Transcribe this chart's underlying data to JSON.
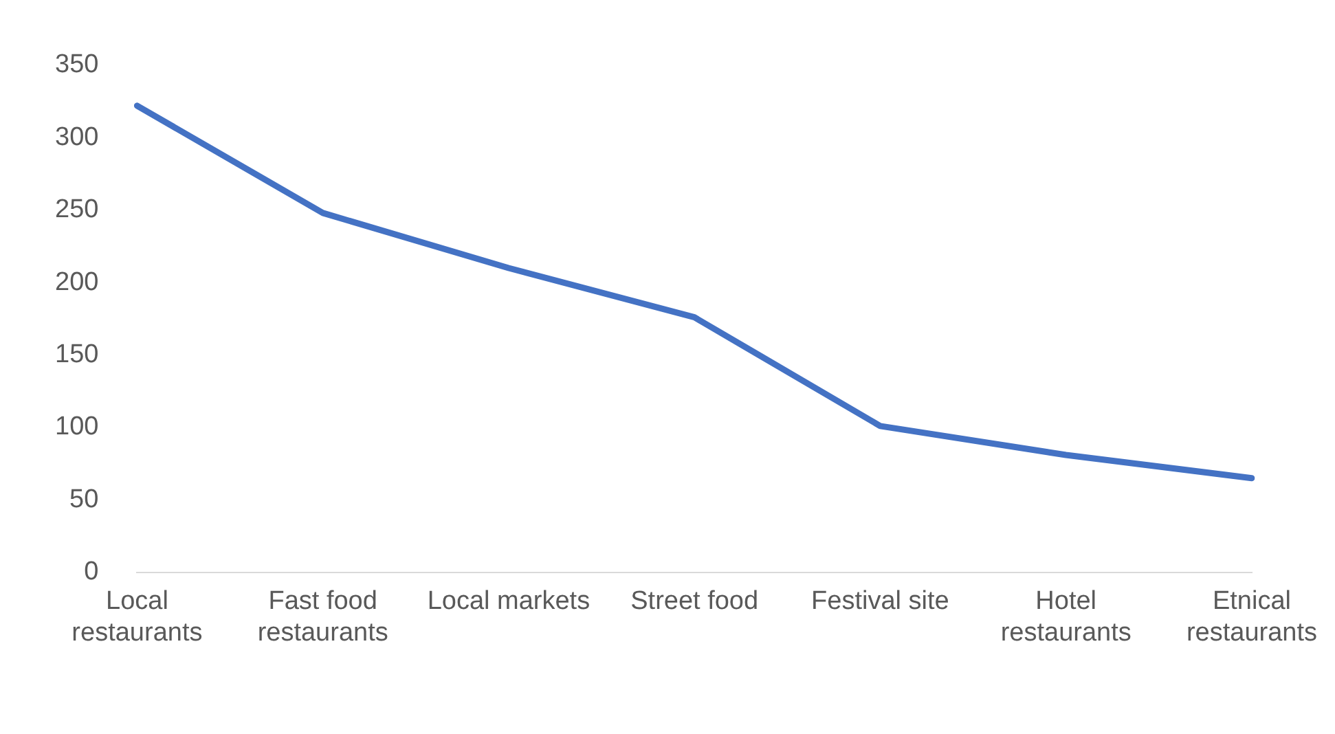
{
  "chart_data": {
    "type": "line",
    "categories": [
      "Local restaurants",
      "Fast food restaurants",
      "Local markets",
      "Street food",
      "Festival site",
      "Hotel restaurants",
      "Etnical restaurants"
    ],
    "series": [
      {
        "color": "#4472c4",
        "values": [
          322,
          248,
          210,
          176,
          101,
          81,
          65
        ]
      }
    ],
    "ylim": [
      0,
      350
    ],
    "yticks": [
      0,
      50,
      100,
      150,
      200,
      250,
      300,
      350
    ],
    "grid": false,
    "legend": false,
    "marker": "none",
    "line_style": "solid"
  }
}
